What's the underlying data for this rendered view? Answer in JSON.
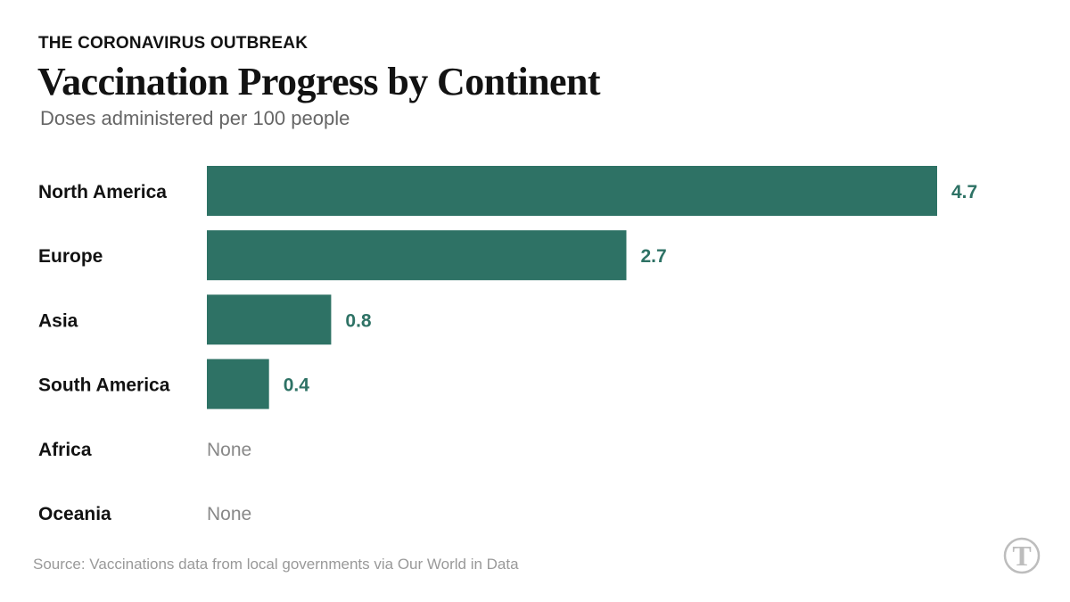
{
  "header": {
    "kicker": "THE CORONAVIRUS OUTBREAK",
    "title": "Vaccination Progress by Continent",
    "subtitle": "Doses administered per 100 people"
  },
  "footer": {
    "source": "Source: Vaccinations data from local governments via Our World in Data",
    "logo_icon": "nyt-t-logo-icon",
    "logo_text": "T"
  },
  "colors": {
    "bar": "#2e7265",
    "value_text": "#2e7265",
    "none_text": "#888888"
  },
  "chart_data": {
    "type": "bar",
    "orientation": "horizontal",
    "categories": [
      "North America",
      "Europe",
      "Asia",
      "South America",
      "Africa",
      "Oceania"
    ],
    "values": [
      4.7,
      2.7,
      0.8,
      0.4,
      null,
      null
    ],
    "value_labels": [
      "4.7",
      "2.7",
      "0.8",
      "0.4",
      "None",
      "None"
    ],
    "xlim": [
      0,
      4.7
    ],
    "grid": false,
    "legend": "none"
  }
}
